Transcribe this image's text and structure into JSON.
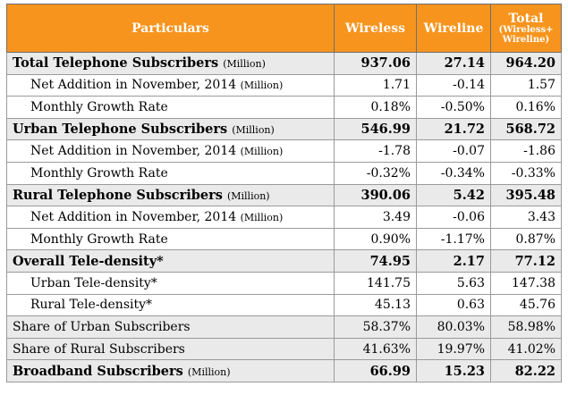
{
  "header": {
    "particulars": "Particulars",
    "wireless": "Wireless",
    "wireline": "Wireline",
    "total": "Total",
    "total_sub1": "(Wireless+",
    "total_sub2": "Wireline)"
  },
  "rows": [
    {
      "label": "Total Telephone Subscribers",
      "unit": "(Million)",
      "wireless": "937.06",
      "wireline": "27.14",
      "total": "964.20"
    },
    {
      "label": "Net Addition in November, 2014",
      "unit": "(Million)",
      "wireless": "1.71",
      "wireline": "-0.14",
      "total": "1.57"
    },
    {
      "label": "Monthly Growth Rate",
      "unit": "",
      "wireless": "0.18%",
      "wireline": "-0.50%",
      "total": "0.16%"
    },
    {
      "label": "Urban Telephone Subscribers",
      "unit": "(Million)",
      "wireless": "546.99",
      "wireline": "21.72",
      "total": "568.72"
    },
    {
      "label": "Net Addition in November, 2014",
      "unit": "(Million)",
      "wireless": "-1.78",
      "wireline": "-0.07",
      "total": "-1.86"
    },
    {
      "label": "Monthly Growth Rate",
      "unit": "",
      "wireless": "-0.32%",
      "wireline": "-0.34%",
      "total": "-0.33%"
    },
    {
      "label": "Rural Telephone Subscribers",
      "unit": "(Million)",
      "wireless": "390.06",
      "wireline": "5.42",
      "total": "395.48"
    },
    {
      "label": "Net Addition in November, 2014",
      "unit": "(Million)",
      "wireless": "3.49",
      "wireline": "-0.06",
      "total": "3.43"
    },
    {
      "label": "Monthly Growth Rate",
      "unit": "",
      "wireless": "0.90%",
      "wireline": "-1.17%",
      "total": "0.87%"
    },
    {
      "label": "Overall Tele-density*",
      "unit": "",
      "wireless": "74.95",
      "wireline": "2.17",
      "total": "77.12"
    },
    {
      "label": "Urban Tele-density*",
      "unit": "",
      "wireless": "141.75",
      "wireline": "5.63",
      "total": "147.38"
    },
    {
      "label": "Rural Tele-density*",
      "unit": "",
      "wireless": "45.13",
      "wireline": "0.63",
      "total": "45.76"
    },
    {
      "label": "Share of Urban Subscribers",
      "unit": "",
      "wireless": "58.37%",
      "wireline": "80.03%",
      "total": "58.98%"
    },
    {
      "label": "Share of Rural Subscribers",
      "unit": "",
      "wireless": "41.63%",
      "wireline": "19.97%",
      "total": "41.02%"
    },
    {
      "label": "Broadband Subscribers",
      "unit": "(Million)",
      "wireless": "66.99",
      "wireline": "15.23",
      "total": "82.22"
    }
  ],
  "colors": {
    "header_bg": "#f7941d",
    "section_bg": "#eaeaea"
  }
}
